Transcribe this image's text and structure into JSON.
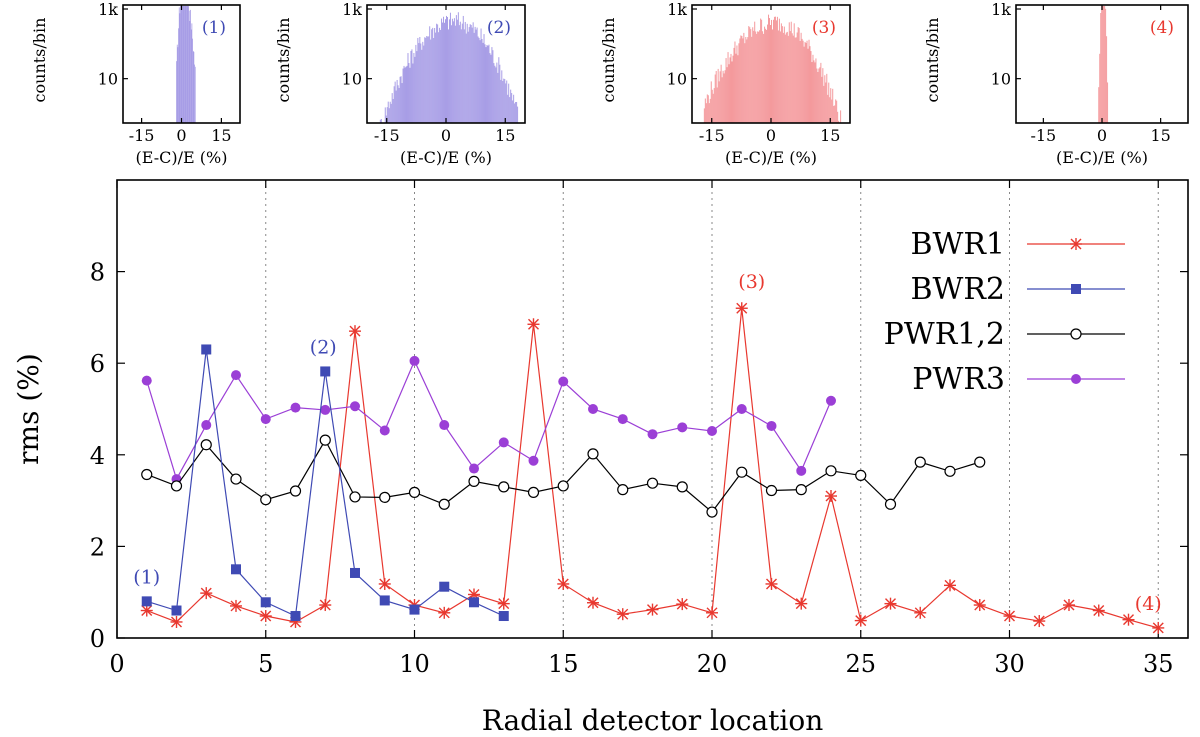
{
  "colors": {
    "BWR1": "#e8382f",
    "BWR2": "#3f4ab4",
    "PWR1,2": "#000000",
    "PWR3": "#9b3fd6",
    "hist_blue": "#a79de6",
    "hist_red": "#f4999c"
  },
  "chart_data": [
    {
      "type": "line",
      "title": "",
      "xlabel": "Radial detector location",
      "ylabel": "rms (%)",
      "xlim": [
        0,
        36
      ],
      "ylim": [
        0,
        10
      ],
      "xticks": [
        0,
        5,
        10,
        15,
        20,
        25,
        30,
        35
      ],
      "yticks": [
        0,
        2,
        4,
        6,
        8
      ],
      "vertical_grid_at": [
        5,
        10,
        15,
        20,
        25,
        30,
        35
      ],
      "legend_position": "top-right",
      "series": [
        {
          "name": "BWR1",
          "marker": "star",
          "x": [
            1,
            2,
            3,
            4,
            5,
            6,
            7,
            8,
            9,
            10,
            11,
            12,
            13,
            14,
            15,
            16,
            17,
            18,
            19,
            20,
            21,
            22,
            23,
            24,
            25,
            26,
            27,
            28,
            29,
            30,
            31,
            32,
            33,
            34,
            35
          ],
          "values": [
            0.6,
            0.35,
            0.98,
            0.7,
            0.48,
            0.35,
            0.72,
            6.7,
            1.18,
            0.72,
            0.55,
            0.95,
            0.75,
            6.85,
            1.18,
            0.77,
            0.52,
            0.62,
            0.74,
            0.55,
            7.2,
            1.18,
            0.75,
            3.1,
            0.38,
            0.75,
            0.55,
            1.15,
            0.72,
            0.48,
            0.37,
            0.72,
            0.6,
            0.4,
            0.22
          ]
        },
        {
          "name": "BWR2",
          "marker": "square",
          "x": [
            1,
            2,
            3,
            4,
            5,
            6,
            7,
            8,
            9,
            10,
            11,
            12,
            13
          ],
          "values": [
            0.8,
            0.6,
            6.3,
            1.5,
            0.78,
            0.48,
            5.82,
            1.42,
            0.82,
            0.62,
            1.12,
            0.78,
            0.48
          ]
        },
        {
          "name": "PWR1,2",
          "marker": "open-circle",
          "x": [
            1,
            2,
            3,
            4,
            5,
            6,
            7,
            8,
            9,
            10,
            11,
            12,
            13,
            14,
            15,
            16,
            17,
            18,
            19,
            20,
            21,
            22,
            23,
            24,
            25,
            26,
            27,
            28,
            29
          ],
          "values": [
            3.57,
            3.32,
            4.22,
            3.47,
            3.02,
            3.21,
            4.32,
            3.08,
            3.07,
            3.18,
            2.92,
            3.42,
            3.3,
            3.18,
            3.32,
            4.02,
            3.24,
            3.38,
            3.3,
            2.75,
            3.62,
            3.22,
            3.24,
            3.65,
            3.55,
            2.92,
            3.84,
            3.64,
            3.84
          ]
        },
        {
          "name": "PWR3",
          "marker": "filled-circle",
          "x": [
            1,
            2,
            3,
            4,
            5,
            6,
            7,
            8,
            9,
            10,
            11,
            12,
            13,
            14,
            15,
            16,
            17,
            18,
            19,
            20,
            21,
            22,
            23,
            24
          ],
          "values": [
            5.62,
            3.47,
            4.65,
            5.74,
            4.78,
            5.03,
            4.98,
            5.06,
            4.53,
            6.05,
            4.65,
            3.7,
            4.27,
            3.87,
            5.6,
            5.0,
            4.78,
            4.45,
            4.6,
            4.52,
            5.0,
            4.63,
            3.65,
            5.18
          ]
        }
      ],
      "annotations": [
        {
          "text": "(1)",
          "x": 1,
          "y": 0.8,
          "color_key": "BWR2"
        },
        {
          "text": "(2)",
          "x": 7,
          "y": 5.82,
          "color_key": "BWR2"
        },
        {
          "text": "(3)",
          "x": 21,
          "y": 7.2,
          "color_key": "BWR1"
        },
        {
          "text": "(4)",
          "x": 35,
          "y": 0.22,
          "color_key": "BWR1"
        }
      ]
    },
    {
      "type": "bar",
      "panel": "(1)",
      "xlabel": "(E-C)/E (%)",
      "ylabel": "counts/bin",
      "xticks": [
        -15,
        0,
        15
      ],
      "ytick_labels": [
        "10",
        "1k"
      ],
      "xlim": [
        -22,
        22
      ],
      "color_key": "hist_blue",
      "distribution": {
        "center": 0.5,
        "spread_left": 0.9,
        "spread_right": 1.6,
        "peak_decades": 2.3,
        "x_min": -2.0,
        "x_max": 5.0
      }
    },
    {
      "type": "bar",
      "panel": "(2)",
      "xlabel": "(E-C)/E (%)",
      "ylabel": "counts/bin",
      "xticks": [
        -15,
        0,
        15
      ],
      "ytick_labels": [
        "10",
        "1k"
      ],
      "xlim": [
        -20,
        20
      ],
      "color_key": "hist_blue",
      "distribution": {
        "center": 2.0,
        "spread_left": 6.0,
        "spread_right": 5.5,
        "peak_decades": 1.4,
        "x_min": -17,
        "x_max": 18
      }
    },
    {
      "type": "bar",
      "panel": "(3)",
      "xlabel": "(E-C)/E (%)",
      "ylabel": "counts/bin",
      "xticks": [
        -15,
        0,
        15
      ],
      "ytick_labels": [
        "10",
        "1k"
      ],
      "xlim": [
        -20,
        20
      ],
      "color_key": "hist_red",
      "distribution": {
        "center": 1.0,
        "spread_left": 6.5,
        "spread_right": 5.5,
        "peak_decades": 1.35,
        "x_min": -17,
        "x_max": 18
      }
    },
    {
      "type": "bar",
      "panel": "(4)",
      "xlabel": "(E-C)/E (%)",
      "ylabel": "counts/bin",
      "xticks": [
        -15,
        0,
        15
      ],
      "ytick_labels": [
        "10",
        "1k"
      ],
      "xlim": [
        -22,
        22
      ],
      "color_key": "hist_red",
      "distribution": {
        "center": 0.2,
        "spread_left": 0.35,
        "spread_right": 0.35,
        "peak_decades": 2.6,
        "x_min": -1.2,
        "x_max": 1.5
      }
    }
  ]
}
